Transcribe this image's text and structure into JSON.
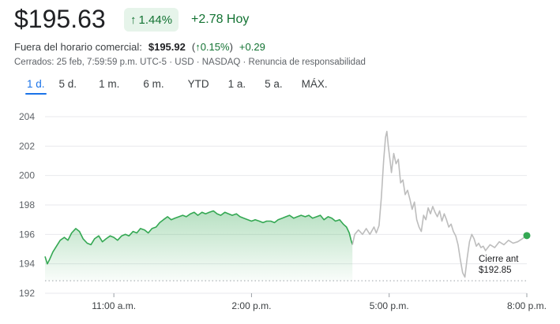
{
  "quote": {
    "price": "$195.63",
    "change_percent": "1.44%",
    "change_text": "+2.78 Hoy",
    "after_hours_label": "Fuera del horario comercial:",
    "after_hours_price": "$195.92",
    "after_hours_percent": "0.15%",
    "after_hours_change": "+0.29",
    "meta": "Cerrados: 25 feb, 7:59:59 p.m. UTC-5 · USD · NASDAQ · Renuncia de responsabilidad",
    "up_color": "#137333",
    "accent": "#1a73e8"
  },
  "ranges": [
    "1 d.",
    "5 d.",
    "1 m.",
    "6 m.",
    "YTD",
    "1 a.",
    "5 a.",
    "MÁX."
  ],
  "active_range": "1 d.",
  "callout": {
    "line1": "Cierre ant",
    "line2": "$192.85"
  },
  "chart_data": {
    "type": "line",
    "y_ticks": [
      192,
      194,
      196,
      198,
      200,
      202,
      204
    ],
    "ylim": [
      192,
      204
    ],
    "x_ticks": [
      {
        "label": "11:00 a.m.",
        "t": 11
      },
      {
        "label": "2:00 p.m.",
        "t": 14
      },
      {
        "label": "5:00 p.m.",
        "t": 17
      },
      {
        "label": "8:00 p.m.",
        "t": 20
      }
    ],
    "xlim": [
      9.5,
      20
    ],
    "previous_close": 192.85,
    "series": [
      {
        "session": "regular",
        "color": "#34a853",
        "fill": "#34a853",
        "points": [
          [
            9.5,
            194.5
          ],
          [
            9.55,
            194.0
          ],
          [
            9.6,
            194.3
          ],
          [
            9.67,
            194.8
          ],
          [
            9.75,
            195.2
          ],
          [
            9.83,
            195.6
          ],
          [
            9.92,
            195.8
          ],
          [
            10.0,
            195.6
          ],
          [
            10.08,
            196.1
          ],
          [
            10.17,
            196.4
          ],
          [
            10.25,
            196.2
          ],
          [
            10.33,
            195.7
          ],
          [
            10.42,
            195.4
          ],
          [
            10.5,
            195.3
          ],
          [
            10.58,
            195.7
          ],
          [
            10.67,
            195.9
          ],
          [
            10.75,
            195.5
          ],
          [
            10.83,
            195.7
          ],
          [
            10.92,
            195.9
          ],
          [
            11.0,
            195.8
          ],
          [
            11.08,
            195.6
          ],
          [
            11.17,
            195.9
          ],
          [
            11.25,
            196.0
          ],
          [
            11.33,
            195.9
          ],
          [
            11.42,
            196.2
          ],
          [
            11.5,
            196.1
          ],
          [
            11.58,
            196.4
          ],
          [
            11.67,
            196.3
          ],
          [
            11.75,
            196.1
          ],
          [
            11.83,
            196.4
          ],
          [
            11.92,
            196.5
          ],
          [
            12.0,
            196.8
          ],
          [
            12.08,
            197.0
          ],
          [
            12.17,
            197.2
          ],
          [
            12.25,
            197.0
          ],
          [
            12.33,
            197.1
          ],
          [
            12.42,
            197.2
          ],
          [
            12.5,
            197.3
          ],
          [
            12.58,
            197.2
          ],
          [
            12.67,
            197.4
          ],
          [
            12.75,
            197.5
          ],
          [
            12.83,
            197.3
          ],
          [
            12.92,
            197.5
          ],
          [
            13.0,
            197.4
          ],
          [
            13.08,
            197.5
          ],
          [
            13.17,
            197.6
          ],
          [
            13.25,
            197.4
          ],
          [
            13.33,
            197.3
          ],
          [
            13.42,
            197.5
          ],
          [
            13.5,
            197.4
          ],
          [
            13.58,
            197.3
          ],
          [
            13.67,
            197.4
          ],
          [
            13.75,
            197.2
          ],
          [
            13.83,
            197.1
          ],
          [
            13.92,
            197.0
          ],
          [
            14.0,
            196.9
          ],
          [
            14.08,
            197.0
          ],
          [
            14.17,
            196.9
          ],
          [
            14.25,
            196.8
          ],
          [
            14.33,
            196.9
          ],
          [
            14.42,
            196.9
          ],
          [
            14.5,
            196.8
          ],
          [
            14.58,
            197.0
          ],
          [
            14.67,
            197.1
          ],
          [
            14.75,
            197.2
          ],
          [
            14.83,
            197.3
          ],
          [
            14.92,
            197.1
          ],
          [
            15.0,
            197.2
          ],
          [
            15.08,
            197.3
          ],
          [
            15.17,
            197.2
          ],
          [
            15.25,
            197.3
          ],
          [
            15.33,
            197.1
          ],
          [
            15.42,
            197.2
          ],
          [
            15.5,
            197.3
          ],
          [
            15.58,
            197.0
          ],
          [
            15.67,
            197.2
          ],
          [
            15.75,
            197.1
          ],
          [
            15.83,
            196.9
          ],
          [
            15.92,
            197.0
          ],
          [
            16.0,
            196.7
          ],
          [
            16.07,
            196.5
          ],
          [
            16.13,
            196.1
          ],
          [
            16.17,
            195.6
          ],
          [
            16.2,
            195.3
          ]
        ]
      },
      {
        "session": "extended",
        "color": "#bdbdbd",
        "points": [
          [
            16.2,
            195.3
          ],
          [
            16.25,
            196.0
          ],
          [
            16.33,
            196.3
          ],
          [
            16.42,
            196.0
          ],
          [
            16.5,
            196.4
          ],
          [
            16.58,
            196.0
          ],
          [
            16.67,
            196.5
          ],
          [
            16.72,
            196.1
          ],
          [
            16.78,
            196.6
          ],
          [
            16.83,
            198.5
          ],
          [
            16.88,
            201.0
          ],
          [
            16.92,
            202.6
          ],
          [
            16.95,
            203.0
          ],
          [
            16.98,
            202.0
          ],
          [
            17.02,
            201.0
          ],
          [
            17.05,
            200.2
          ],
          [
            17.1,
            201.5
          ],
          [
            17.15,
            200.8
          ],
          [
            17.2,
            201.1
          ],
          [
            17.25,
            199.5
          ],
          [
            17.3,
            199.7
          ],
          [
            17.35,
            198.7
          ],
          [
            17.4,
            199.0
          ],
          [
            17.45,
            198.4
          ],
          [
            17.5,
            197.7
          ],
          [
            17.55,
            198.2
          ],
          [
            17.6,
            197.0
          ],
          [
            17.65,
            196.5
          ],
          [
            17.7,
            196.2
          ],
          [
            17.75,
            197.3
          ],
          [
            17.8,
            197.0
          ],
          [
            17.85,
            197.8
          ],
          [
            17.9,
            197.4
          ],
          [
            17.95,
            197.9
          ],
          [
            18.0,
            197.5
          ],
          [
            18.05,
            197.2
          ],
          [
            18.1,
            197.6
          ],
          [
            18.15,
            196.9
          ],
          [
            18.2,
            197.4
          ],
          [
            18.25,
            197.0
          ],
          [
            18.3,
            196.5
          ],
          [
            18.35,
            196.7
          ],
          [
            18.4,
            196.2
          ],
          [
            18.45,
            195.9
          ],
          [
            18.5,
            195.3
          ],
          [
            18.55,
            194.3
          ],
          [
            18.6,
            193.4
          ],
          [
            18.65,
            193.1
          ],
          [
            18.7,
            194.4
          ],
          [
            18.75,
            195.5
          ],
          [
            18.8,
            196.0
          ],
          [
            18.85,
            195.7
          ],
          [
            18.9,
            195.2
          ],
          [
            18.95,
            195.4
          ],
          [
            19.0,
            195.1
          ],
          [
            19.05,
            195.2
          ],
          [
            19.1,
            194.9
          ],
          [
            19.2,
            195.3
          ],
          [
            19.3,
            195.1
          ],
          [
            19.4,
            195.5
          ],
          [
            19.5,
            195.3
          ],
          [
            19.6,
            195.6
          ],
          [
            19.7,
            195.4
          ],
          [
            19.8,
            195.5
          ],
          [
            19.9,
            195.7
          ],
          [
            20.0,
            195.92
          ]
        ]
      }
    ],
    "last_point": {
      "t": 20.0,
      "price": 195.92
    },
    "grid": true
  }
}
